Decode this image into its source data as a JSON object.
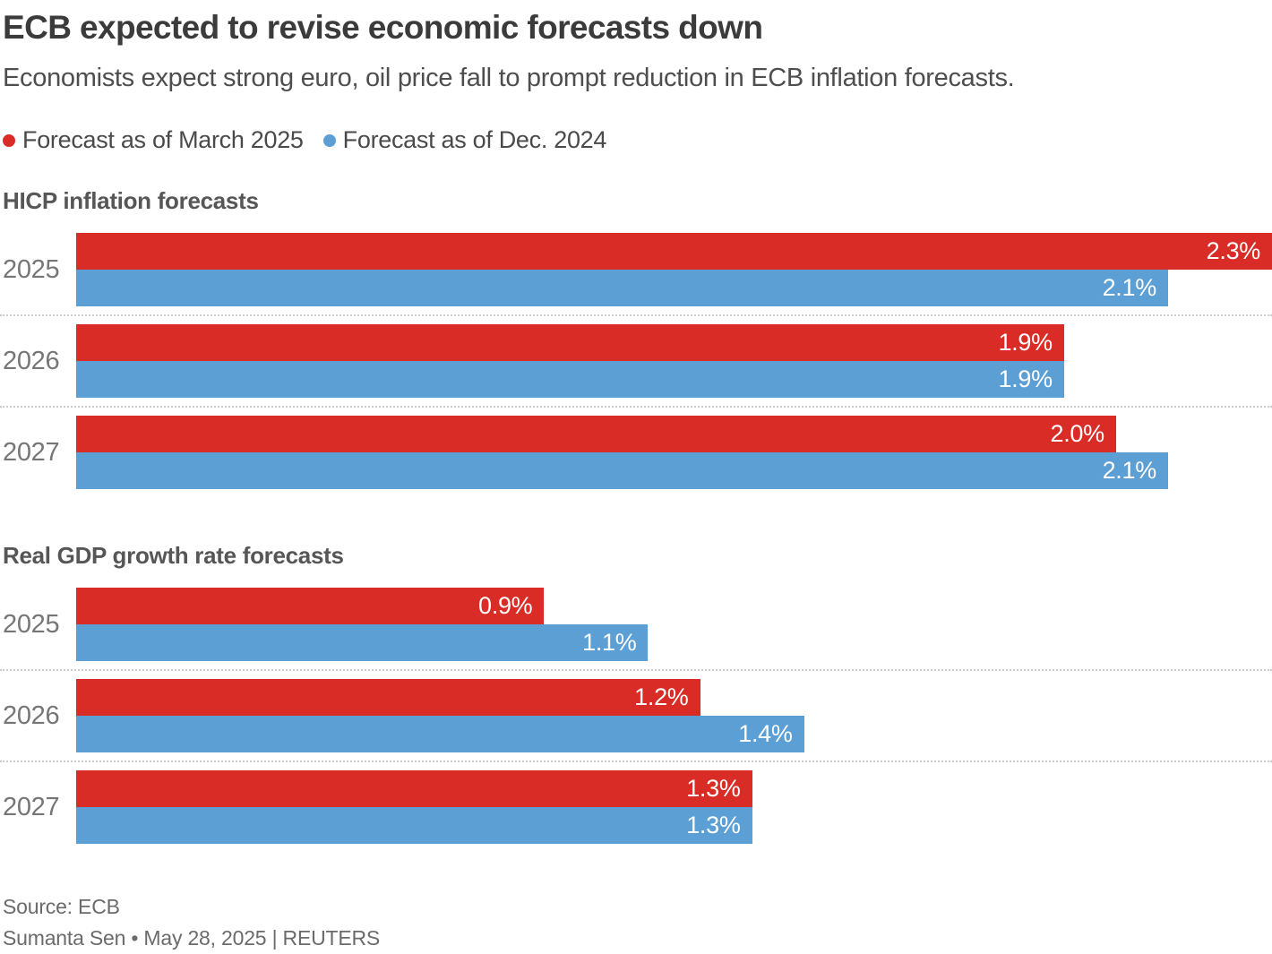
{
  "header": {
    "title": "ECB expected to revise economic forecasts down",
    "subtitle": "Economists expect strong euro, oil price fall to prompt reduction in ECB inflation forecasts."
  },
  "legend": {
    "items": [
      {
        "label": "Forecast as of March 2025",
        "color": "#d92c26"
      },
      {
        "label": "Forecast as of Dec. 2024",
        "color": "#5b9fd4"
      }
    ]
  },
  "colors": {
    "march": "#d92c26",
    "dec": "#5b9fd4"
  },
  "chart_data": {
    "type": "bar",
    "orientation": "horizontal",
    "unit": "%",
    "axis_max": 2.3,
    "grid": "dotted-row-separators",
    "legend_position": "top-left",
    "series_names": [
      "Forecast as of March 2025",
      "Forecast as of Dec. 2024"
    ],
    "sections": [
      {
        "title": "HICP inflation forecasts",
        "rows": [
          {
            "year": "2025",
            "march": 2.3,
            "march_label": "2.3%",
            "dec": 2.1,
            "dec_label": "2.1%"
          },
          {
            "year": "2026",
            "march": 1.9,
            "march_label": "1.9%",
            "dec": 1.9,
            "dec_label": "1.9%"
          },
          {
            "year": "2027",
            "march": 2.0,
            "march_label": "2.0%",
            "dec": 2.1,
            "dec_label": "2.1%"
          }
        ]
      },
      {
        "title": "Real GDP growth rate forecasts",
        "rows": [
          {
            "year": "2025",
            "march": 0.9,
            "march_label": "0.9%",
            "dec": 1.1,
            "dec_label": "1.1%"
          },
          {
            "year": "2026",
            "march": 1.2,
            "march_label": "1.2%",
            "dec": 1.4,
            "dec_label": "1.4%"
          },
          {
            "year": "2027",
            "march": 1.3,
            "march_label": "1.3%",
            "dec": 1.3,
            "dec_label": "1.3%"
          }
        ]
      }
    ]
  },
  "footer": {
    "source": "Source: ECB",
    "byline": "Sumanta Sen • May 28, 2025 | REUTERS"
  }
}
